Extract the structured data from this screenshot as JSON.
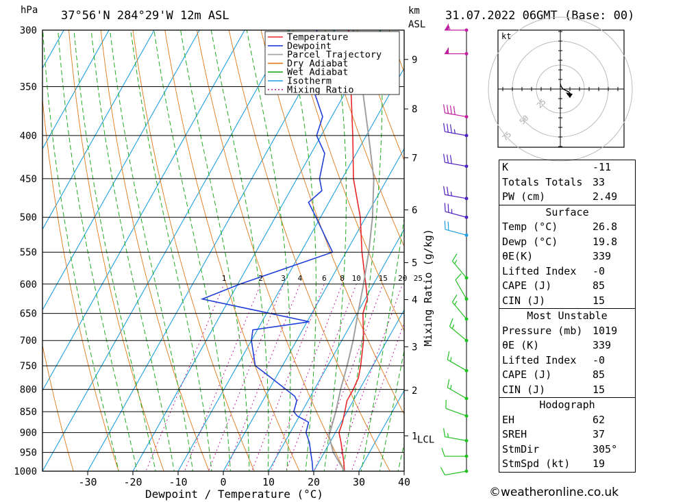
{
  "header": {
    "pressure_unit": "hPa",
    "location": "37°56'N  284°29'W  12m  ASL",
    "height_unit": "km",
    "height_unit_sub": "ASL",
    "datetime": "31.07.2022  06GMT  (Base: 00)"
  },
  "hodograph": {
    "unit": "kt",
    "ring_labels": [
      "25",
      "50",
      "75"
    ]
  },
  "indices": {
    "general": [
      {
        "label": "K",
        "value": "-11"
      },
      {
        "label": "Totals Totals",
        "value": "33"
      },
      {
        "label": "PW (cm)",
        "value": "2.49"
      }
    ],
    "surface": {
      "title": "Surface",
      "rows": [
        {
          "label": "Temp (°C)",
          "value": "26.8"
        },
        {
          "label": "Dewp (°C)",
          "value": "19.8"
        },
        {
          "label": "θE(K)",
          "value": "339"
        },
        {
          "label": "Lifted Index",
          "value": "-0"
        },
        {
          "label": "CAPE (J)",
          "value": "85"
        },
        {
          "label": "CIN (J)",
          "value": "15"
        }
      ]
    },
    "most_unstable": {
      "title": "Most Unstable",
      "rows": [
        {
          "label": "Pressure (mb)",
          "value": "1019"
        },
        {
          "label": "θE (K)",
          "value": "339"
        },
        {
          "label": "Lifted Index",
          "value": "-0"
        },
        {
          "label": "CAPE (J)",
          "value": "85"
        },
        {
          "label": "CIN (J)",
          "value": "15"
        }
      ]
    },
    "hodograph": {
      "title": "Hodograph",
      "rows": [
        {
          "label": "EH",
          "value": "62"
        },
        {
          "label": "SREH",
          "value": "37"
        },
        {
          "label": "StmDir",
          "value": "305°"
        },
        {
          "label": "StmSpd (kt)",
          "value": "19"
        }
      ]
    }
  },
  "credit": "©weatheronline.co.uk",
  "colors": {
    "temperature": "#e8262a",
    "dewpoint": "#1f3fd8",
    "parcel": "#a0a0a0",
    "dry_adiabat": "#e07818",
    "wet_adiabat": "#1faa1f",
    "isotherm": "#1ea0e0",
    "mixing_ratio": "#c0209a"
  },
  "chart_data": {
    "type": "line",
    "title": "37°56'N  284°29'W  12m  ASL",
    "xlabel": "Dewpoint / Temperature (°C)",
    "ylabel": "hPa",
    "right_axis_label": "Mixing Ratio (g/kg)",
    "xlim": [
      -40,
      40
    ],
    "ylim": [
      1000,
      300
    ],
    "x_ticks": [
      "-30",
      "-20",
      "-10",
      "0",
      "10",
      "20",
      "30",
      "40"
    ],
    "pressure_ticks": [
      "300",
      "350",
      "400",
      "450",
      "500",
      "550",
      "600",
      "650",
      "700",
      "750",
      "800",
      "850",
      "900",
      "950",
      "1000"
    ],
    "height_ticks": [
      {
        "label": "9",
        "p": 325
      },
      {
        "label": "8",
        "p": 372
      },
      {
        "label": "7",
        "p": 425
      },
      {
        "label": "6",
        "p": 490
      },
      {
        "label": "5",
        "p": 566
      },
      {
        "label": "4",
        "p": 626
      },
      {
        "label": "3",
        "p": 712
      },
      {
        "label": "2",
        "p": 802
      },
      {
        "label": "1",
        "p": 908
      }
    ],
    "lcl_label": "LCL",
    "lcl_p": 908,
    "mixing_ratio_labels": [
      "1",
      "2",
      "3",
      "4",
      "6",
      "8",
      "10",
      "15",
      "20",
      "25"
    ],
    "legend": [
      "Temperature",
      "Dewpoint",
      "Parcel Trajectory",
      "Dry Adiabat",
      "Wet Adiabat",
      "Isotherm",
      "Mixing Ratio"
    ],
    "series": [
      {
        "name": "Temperature",
        "points": [
          [
            1000,
            26.8
          ],
          [
            975,
            25.5
          ],
          [
            950,
            24
          ],
          [
            925,
            22.5
          ],
          [
            900,
            20.8
          ],
          [
            875,
            20.3
          ],
          [
            850,
            19.5
          ],
          [
            825,
            18.6
          ],
          [
            800,
            18.6
          ],
          [
            775,
            18.3
          ],
          [
            750,
            17.3
          ],
          [
            700,
            14.8
          ],
          [
            650,
            11.3
          ],
          [
            625,
            10.5
          ],
          [
            600,
            8.3
          ],
          [
            550,
            3.5
          ],
          [
            500,
            -1.2
          ],
          [
            450,
            -7.5
          ],
          [
            400,
            -13
          ],
          [
            350,
            -19.5
          ],
          [
            300,
            -27
          ]
        ]
      },
      {
        "name": "Dewpoint",
        "points": [
          [
            1000,
            19.8
          ],
          [
            975,
            18.5
          ],
          [
            950,
            17
          ],
          [
            925,
            15.5
          ],
          [
            900,
            13.5
          ],
          [
            875,
            12.8
          ],
          [
            860,
            9.5
          ],
          [
            850,
            8.2
          ],
          [
            825,
            7.5
          ],
          [
            815,
            6.5
          ],
          [
            775,
            -1
          ],
          [
            750,
            -6
          ],
          [
            700,
            -10
          ],
          [
            680,
            -11
          ],
          [
            665,
            0.5
          ],
          [
            625,
            -26
          ],
          [
            600,
            -19.5
          ],
          [
            550,
            -3
          ],
          [
            500,
            -11
          ],
          [
            480,
            -14.5
          ],
          [
            465,
            -13
          ],
          [
            450,
            -15
          ],
          [
            420,
            -17
          ],
          [
            400,
            -21
          ],
          [
            380,
            -22
          ],
          [
            350,
            -28
          ],
          [
            340,
            -30
          ],
          [
            320,
            -32
          ],
          [
            300,
            -34
          ]
        ]
      },
      {
        "name": "Parcel Trajectory",
        "points": [
          [
            1000,
            26.8
          ],
          [
            950,
            22
          ],
          [
            908,
            19
          ],
          [
            850,
            17.5
          ],
          [
            800,
            15.8
          ],
          [
            750,
            14.3
          ],
          [
            700,
            12.5
          ],
          [
            650,
            10.2
          ],
          [
            600,
            7.8
          ],
          [
            550,
            5
          ],
          [
            500,
            1.5
          ],
          [
            450,
            -3
          ],
          [
            400,
            -9.5
          ],
          [
            350,
            -17
          ],
          [
            300,
            -26
          ]
        ]
      }
    ],
    "wind_barbs": [
      {
        "p": 300,
        "dir": 270,
        "kt": 55
      },
      {
        "p": 320,
        "dir": 270,
        "kt": 50
      },
      {
        "p": 380,
        "dir": 280,
        "kt": 40
      },
      {
        "p": 400,
        "dir": 280,
        "kt": 35
      },
      {
        "p": 435,
        "dir": 280,
        "kt": 30
      },
      {
        "p": 475,
        "dir": 280,
        "kt": 25
      },
      {
        "p": 500,
        "dir": 285,
        "kt": 25
      },
      {
        "p": 525,
        "dir": 285,
        "kt": 20
      },
      {
        "p": 590,
        "dir": 320,
        "kt": 15
      },
      {
        "p": 625,
        "dir": 330,
        "kt": 10
      },
      {
        "p": 660,
        "dir": 320,
        "kt": 15
      },
      {
        "p": 700,
        "dir": 310,
        "kt": 15
      },
      {
        "p": 760,
        "dir": 300,
        "kt": 15
      },
      {
        "p": 820,
        "dir": 300,
        "kt": 15
      },
      {
        "p": 860,
        "dir": 290,
        "kt": 10
      },
      {
        "p": 920,
        "dir": 280,
        "kt": 15
      },
      {
        "p": 960,
        "dir": 270,
        "kt": 10
      },
      {
        "p": 1000,
        "dir": 260,
        "kt": 10
      }
    ],
    "hodograph_points": [
      [
        0,
        18
      ],
      [
        1,
        14
      ],
      [
        4,
        10
      ],
      [
        8,
        8
      ],
      [
        12,
        6
      ],
      [
        14,
        4
      ],
      [
        12,
        2
      ],
      [
        10,
        2
      ]
    ]
  }
}
